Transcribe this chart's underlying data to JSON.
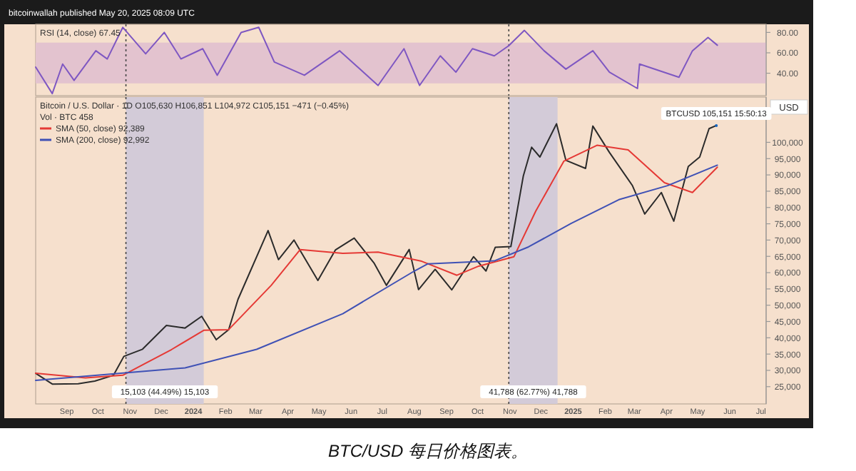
{
  "chart_data": [
    {
      "type": "line",
      "title": "RSI (14, close) 67.45",
      "annotations": [
        "bitcoinwallah published May 20, 2025 08:09 UTC"
      ],
      "xlim": [
        "2023-08-02",
        "2025-07-06"
      ],
      "ylim": [
        18,
        88
      ],
      "yticks": [
        {
          "value": 40,
          "label": "40.00"
        },
        {
          "value": 60,
          "label": "60.00"
        },
        {
          "value": 80,
          "label": "80.00"
        }
      ],
      "tick_labels": "y",
      "bands": [
        {
          "axis": "y",
          "from": 30,
          "to": 70,
          "color": "#e3c3cf"
        }
      ],
      "ref_lines": [
        {
          "axis": "x",
          "value": "2023-10-28",
          "line_style": "dotted",
          "color": "#444444"
        },
        {
          "axis": "x",
          "value": "2024-10-31",
          "line_style": "dotted",
          "color": "#444444"
        }
      ],
      "series": [
        {
          "color": "#7e57c2",
          "x": [
            "2023-08-02",
            "2023-08-18",
            "2023-08-28",
            "2023-09-08",
            "2023-09-29",
            "2023-10-10",
            "2023-10-25",
            "2023-11-16",
            "2023-12-04",
            "2023-12-20",
            "2024-01-10",
            "2024-01-24",
            "2024-02-16",
            "2024-03-04",
            "2024-03-19",
            "2024-04-17",
            "2024-05-21",
            "2024-06-27",
            "2024-07-22",
            "2024-08-06",
            "2024-08-26",
            "2024-09-10",
            "2024-09-26",
            "2024-10-17",
            "2024-10-31",
            "2024-11-15",
            "2024-12-04",
            "2024-12-25",
            "2025-01-20",
            "2025-02-05",
            "2025-03-04",
            "2025-03-06",
            "2025-04-13",
            "2025-04-26",
            "2025-05-11",
            "2025-05-20"
          ],
          "values": [
            46,
            20,
            49,
            33,
            62,
            54,
            85,
            59,
            80,
            54,
            64,
            38,
            80,
            85,
            51,
            38,
            62,
            28,
            64,
            28,
            57,
            41,
            64,
            57,
            67,
            82,
            62,
            44,
            62,
            41,
            25,
            49,
            36,
            62,
            75,
            67.45
          ]
        }
      ]
    },
    {
      "type": "line",
      "title": "Bitcoin / U.S. Dollar · 1D  O105,630 H106,851 L104,972 C105,151 −471 (−0.45%)",
      "ylabel": "USD",
      "legend": "top left",
      "annotations": [
        "Vol · BTC 458",
        {
          "text": "BTCUSD 105,151 15:50:13",
          "x": "2025-05-19",
          "y": 105151
        },
        "BTC/USD 每日价格图表。"
      ],
      "xlim": [
        "2023-08-02",
        "2025-07-06"
      ],
      "ylim": [
        19700,
        113900
      ],
      "yticks": [
        {
          "value": 25000,
          "label": "25,000"
        },
        {
          "value": 30000,
          "label": "30,000"
        },
        {
          "value": 35000,
          "label": "35,000"
        },
        {
          "value": 40000,
          "label": "40,000"
        },
        {
          "value": 45000,
          "label": "45,000"
        },
        {
          "value": 50000,
          "label": "50,000"
        },
        {
          "value": 55000,
          "label": "55,000"
        },
        {
          "value": 60000,
          "label": "60,000"
        },
        {
          "value": 65000,
          "label": "65,000"
        },
        {
          "value": 70000,
          "label": "70,000"
        },
        {
          "value": 75000,
          "label": "75,000"
        },
        {
          "value": 80000,
          "label": "80,000"
        },
        {
          "value": 85000,
          "label": "85,000"
        },
        {
          "value": 90000,
          "label": "90,000"
        },
        {
          "value": 95000,
          "label": "95,000"
        },
        {
          "value": 100000,
          "label": "100,000"
        }
      ],
      "xticks": [
        {
          "value": "2023-09-01",
          "label": "Sep"
        },
        {
          "value": "2023-10-01",
          "label": "Oct"
        },
        {
          "value": "2023-11-01",
          "label": "Nov"
        },
        {
          "value": "2023-12-01",
          "label": "Dec"
        },
        {
          "value": "2024-01-01",
          "label": "2024"
        },
        {
          "value": "2024-02-01",
          "label": "Feb"
        },
        {
          "value": "2024-03-01",
          "label": "Mar"
        },
        {
          "value": "2024-04-01",
          "label": "Apr"
        },
        {
          "value": "2024-05-01",
          "label": "May"
        },
        {
          "value": "2024-06-01",
          "label": "Jun"
        },
        {
          "value": "2024-07-01",
          "label": "Jul"
        },
        {
          "value": "2024-08-01",
          "label": "Aug"
        },
        {
          "value": "2024-09-01",
          "label": "Sep"
        },
        {
          "value": "2024-10-01",
          "label": "Oct"
        },
        {
          "value": "2024-11-01",
          "label": "Nov"
        },
        {
          "value": "2024-12-01",
          "label": "Dec"
        },
        {
          "value": "2025-01-01",
          "label": "2025"
        },
        {
          "value": "2025-02-01",
          "label": "Feb"
        },
        {
          "value": "2025-03-01",
          "label": "Mar"
        },
        {
          "value": "2025-04-01",
          "label": "Apr"
        },
        {
          "value": "2025-05-01",
          "label": "May"
        },
        {
          "value": "2025-06-01",
          "label": "Jun"
        },
        {
          "value": "2025-07-01",
          "label": "Jul"
        }
      ],
      "bands": [
        {
          "axis": "x",
          "from": "2023-10-28",
          "to": "2024-01-11",
          "color": "#d3cbd8",
          "label": "15,103 (44.49%) 15,103"
        },
        {
          "axis": "x",
          "from": "2024-10-31",
          "to": "2024-12-17",
          "color": "#d3cbd8",
          "label": "41,788 (62.77%) 41,788"
        }
      ],
      "ref_lines": [
        {
          "axis": "x",
          "value": "2023-10-28",
          "line_style": "dotted",
          "color": "#444444"
        },
        {
          "axis": "x",
          "value": "2024-10-31",
          "line_style": "dotted",
          "color": "#444444"
        }
      ],
      "series": [
        {
          "color": "#2b2b2b",
          "x": [
            "2023-08-02",
            "2023-08-18",
            "2023-09-12",
            "2023-09-28",
            "2023-10-16",
            "2023-10-26",
            "2023-11-13",
            "2023-12-06",
            "2023-12-24",
            "2024-01-09",
            "2024-01-23",
            "2024-02-04",
            "2024-02-13",
            "2024-03-13",
            "2024-03-23",
            "2024-04-07",
            "2024-04-30",
            "2024-05-17",
            "2024-06-04",
            "2024-06-23",
            "2024-07-05",
            "2024-07-27",
            "2024-08-05",
            "2024-08-21",
            "2024-09-06",
            "2024-09-27",
            "2024-10-09",
            "2024-10-18",
            "2024-11-02",
            "2024-11-14",
            "2024-11-22",
            "2024-11-30",
            "2024-12-16",
            "2024-12-25",
            "2025-01-13",
            "2025-01-20",
            "2025-02-05",
            "2025-02-27",
            "2025-03-11",
            "2025-03-27",
            "2025-04-08",
            "2025-04-22",
            "2025-05-03",
            "2025-05-12",
            "2025-05-19"
          ],
          "values": [
            29100,
            25800,
            25900,
            26700,
            28500,
            34300,
            36500,
            43800,
            43000,
            46600,
            39400,
            42500,
            51800,
            72900,
            64000,
            70000,
            57600,
            67000,
            70600,
            63000,
            56100,
            67100,
            54800,
            61000,
            54700,
            64900,
            60500,
            67800,
            68000,
            89700,
            98500,
            95500,
            105700,
            94500,
            92000,
            105000,
            96900,
            86800,
            78000,
            84600,
            75800,
            92600,
            95500,
            104200,
            105151
          ]
        },
        {
          "name": "SMA (50, close) 92,389",
          "color": "#e53935",
          "x": [
            "2023-08-02",
            "2023-09-19",
            "2023-10-25",
            "2023-12-11",
            "2024-01-11",
            "2024-02-04",
            "2024-03-16",
            "2024-04-13",
            "2024-05-24",
            "2024-06-27",
            "2024-08-08",
            "2024-09-11",
            "2024-10-02",
            "2024-11-05",
            "2024-11-26",
            "2024-12-23",
            "2025-01-24",
            "2025-02-23",
            "2025-03-30",
            "2025-04-26",
            "2025-05-20"
          ],
          "values": [
            29100,
            27700,
            28500,
            36400,
            42300,
            42500,
            56100,
            67100,
            65900,
            66300,
            63500,
            59200,
            62000,
            64900,
            78900,
            94200,
            99100,
            97700,
            87600,
            84600,
            92389
          ]
        },
        {
          "name": "SMA (200, close) 92,992",
          "color": "#3f51b5",
          "x": [
            "2023-08-02",
            "2023-12-24",
            "2024-03-02",
            "2024-05-24",
            "2024-08-01",
            "2024-08-14",
            "2024-10-17",
            "2024-11-19",
            "2024-12-30",
            "2025-02-14",
            "2025-04-02",
            "2025-05-20"
          ],
          "values": [
            26950,
            30750,
            36450,
            47400,
            60500,
            62700,
            63600,
            67900,
            75100,
            82400,
            86700,
            92992
          ]
        }
      ]
    }
  ]
}
